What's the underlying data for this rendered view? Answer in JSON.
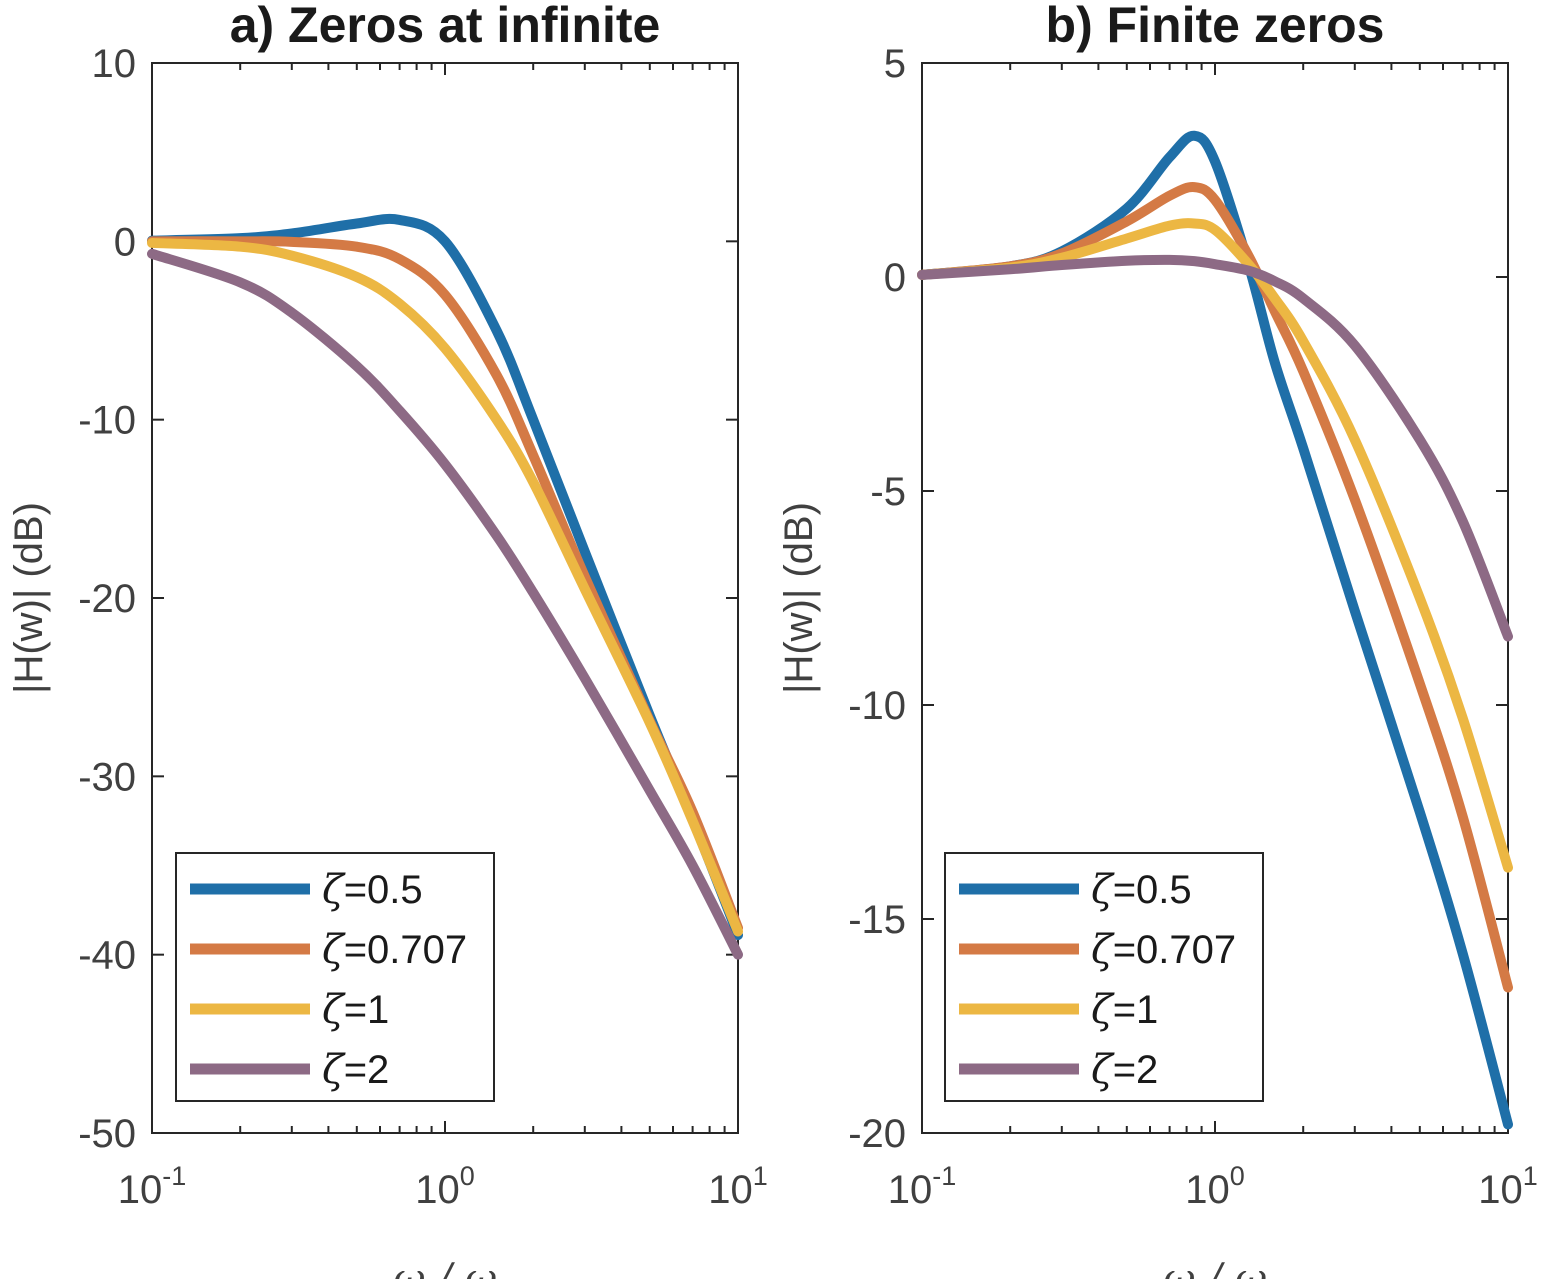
{
  "chart_data": [
    {
      "type": "line",
      "title": "a) Zeros at infinite",
      "xlabel": "ω / ω",
      "ylabel": "|H(w)| (dB)",
      "x_scale": "log",
      "xlim": [
        0.1,
        10
      ],
      "ylim": [
        -50,
        10
      ],
      "yticks": [
        "10",
        "0",
        "-10",
        "-20",
        "-30",
        "-40",
        "-50"
      ],
      "xticks": [
        {
          "base": "10",
          "exp": "-1"
        },
        {
          "base": "10",
          "exp": "0"
        },
        {
          "base": "10",
          "exp": "1"
        }
      ],
      "x": [
        0.1,
        0.2,
        0.3,
        0.5,
        0.7,
        1.0,
        1.5,
        2.0,
        3.0,
        5.0,
        7.0,
        10.0
      ],
      "series": [
        {
          "name": "ζ=0.5",
          "color": "#1f6fa8",
          "values": [
            0.04,
            0.18,
            0.44,
            1.0,
            1.2,
            0.0,
            -5.0,
            -10.0,
            -17.4,
            -26.6,
            -32.4,
            -38.9
          ]
        },
        {
          "name": "ζ=0.707",
          "color": "#d47a45",
          "values": [
            0.0,
            0.0,
            -0.03,
            -0.3,
            -1.0,
            -3.0,
            -7.5,
            -12.0,
            -18.8,
            -26.9,
            -32.0,
            -38.5
          ]
        },
        {
          "name": "ζ=1",
          "color": "#ecb743",
          "values": [
            -0.09,
            -0.3,
            -0.8,
            -2.0,
            -3.5,
            -6.0,
            -10.0,
            -13.5,
            -19.5,
            -27.0,
            -32.5,
            -38.7
          ]
        },
        {
          "name": "ζ=2",
          "color": "#8d6a85",
          "values": [
            -0.7,
            -2.3,
            -4.0,
            -7.0,
            -9.5,
            -12.5,
            -16.5,
            -19.7,
            -24.5,
            -30.8,
            -35.0,
            -40.0
          ]
        }
      ],
      "legend": "bottom-left"
    },
    {
      "type": "line",
      "title": "b) Finite zeros",
      "xlabel": "ω / ω",
      "ylabel": "|H(w)| (dB)",
      "x_scale": "log",
      "xlim": [
        0.1,
        10
      ],
      "ylim": [
        -20,
        5
      ],
      "yticks": [
        "5",
        "0",
        "-5",
        "-10",
        "-15",
        "-20"
      ],
      "xticks": [
        {
          "base": "10",
          "exp": "-1"
        },
        {
          "base": "10",
          "exp": "0"
        },
        {
          "base": "10",
          "exp": "1"
        }
      ],
      "x": [
        0.1,
        0.2,
        0.3,
        0.5,
        0.7,
        0.85,
        1.0,
        1.3,
        1.6,
        2.0,
        3.0,
        5.0,
        7.0,
        10.0
      ],
      "series": [
        {
          "name": "ζ=0.5",
          "color": "#1f6fa8",
          "values": [
            0.05,
            0.25,
            0.6,
            1.6,
            2.8,
            3.3,
            2.7,
            0.3,
            -2.0,
            -4.0,
            -7.8,
            -12.5,
            -15.8,
            -19.8
          ]
        },
        {
          "name": "ζ=0.707",
          "color": "#d47a45",
          "values": [
            0.05,
            0.25,
            0.55,
            1.3,
            1.9,
            2.1,
            1.8,
            0.5,
            -0.8,
            -2.2,
            -5.2,
            -9.5,
            -12.6,
            -16.6
          ]
        },
        {
          "name": "ζ=1",
          "color": "#ecb743",
          "values": [
            0.05,
            0.22,
            0.45,
            0.9,
            1.2,
            1.25,
            1.1,
            0.3,
            -0.5,
            -1.5,
            -3.8,
            -7.5,
            -10.3,
            -13.8
          ]
        },
        {
          "name": "ζ=2",
          "color": "#8d6a85",
          "values": [
            0.05,
            0.18,
            0.28,
            0.38,
            0.4,
            0.37,
            0.3,
            0.15,
            -0.1,
            -0.5,
            -1.6,
            -3.8,
            -5.7,
            -8.4
          ]
        }
      ],
      "legend": "bottom-left"
    }
  ]
}
